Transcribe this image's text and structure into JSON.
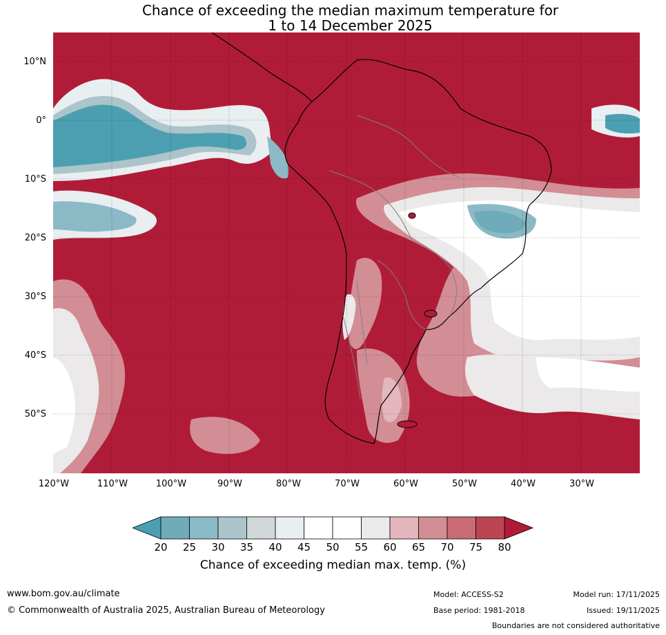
{
  "title": {
    "line1": "Chance of exceeding the median maximum temperature for",
    "line2": "1 to 14 December 2025"
  },
  "map": {
    "lat_labels": [
      "10°N",
      "0°",
      "10°S",
      "20°S",
      "30°S",
      "40°S",
      "50°S"
    ],
    "lon_labels": [
      "120°W",
      "110°W",
      "100°W",
      "90°W",
      "80°W",
      "70°W",
      "60°W",
      "50°W",
      "40°W",
      "30°W"
    ],
    "lon_range": [
      -120,
      -20
    ],
    "lat_range": [
      -60,
      15
    ],
    "background_color": "#b01c37",
    "land_outline_color": "#000000",
    "border_color": "#808080"
  },
  "legend": {
    "ticks": [
      "20",
      "25",
      "30",
      "35",
      "40",
      "45",
      "50",
      "55",
      "60",
      "65",
      "70",
      "75",
      "80"
    ],
    "colors": [
      "#4c9fb0",
      "#6fabb8",
      "#8bb9c6",
      "#abc5ca",
      "#d2d8da",
      "#e9eef1",
      "#ffffff",
      "#ffffff",
      "#ebe9ea",
      "#e3b7bd",
      "#d38d95",
      "#c86b74",
      "#bd4453",
      "#b01c37"
    ],
    "label": "Chance of exceeding median max. temp. (%)"
  },
  "footer": {
    "website": "www.bom.gov.au/climate",
    "copyright": "© Commonwealth of Australia 2025, Australian Bureau of Meteorology",
    "model": "Model: ACCESS-S2",
    "base_period": "Base period: 1981-2018",
    "model_run": "Model run: 17/11/2025",
    "issued": "Issued: 19/11/2025",
    "disclaimer": "Boundaries are not considered authoritative"
  }
}
